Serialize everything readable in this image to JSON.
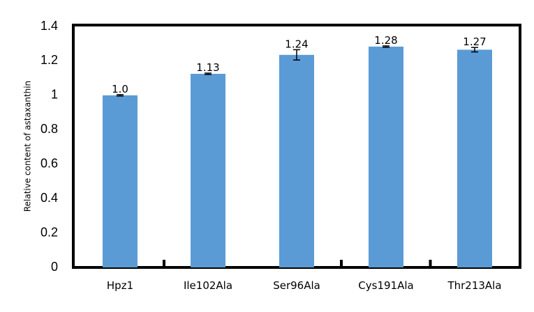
{
  "chart_data": {
    "type": "bar",
    "title": "",
    "xlabel": "",
    "ylabel": "Relative content of astaxanthin",
    "categories": [
      "Hpz1",
      "Ile102Ala",
      "Ser96Ala",
      "Cys191Ala",
      "Thr213Ala"
    ],
    "values": [
      1.0,
      1.125,
      1.235,
      1.283,
      1.265
    ],
    "errors": [
      0.004,
      0.004,
      0.03,
      0.004,
      0.013
    ],
    "data_labels": [
      "1.0",
      "1.13",
      "1.24",
      "1.28",
      "1.27"
    ],
    "ylim": [
      0,
      1.4
    ],
    "yticks": [
      0,
      0.2,
      0.4,
      0.6,
      0.8,
      1,
      1.2,
      1.4
    ],
    "ytick_labels": [
      "0",
      "0.2",
      "0.4",
      "0.6",
      "0.8",
      "1",
      "1.2",
      "1.4"
    ],
    "bar_color": "#5b9bd5",
    "grid": false,
    "legend": "none"
  }
}
